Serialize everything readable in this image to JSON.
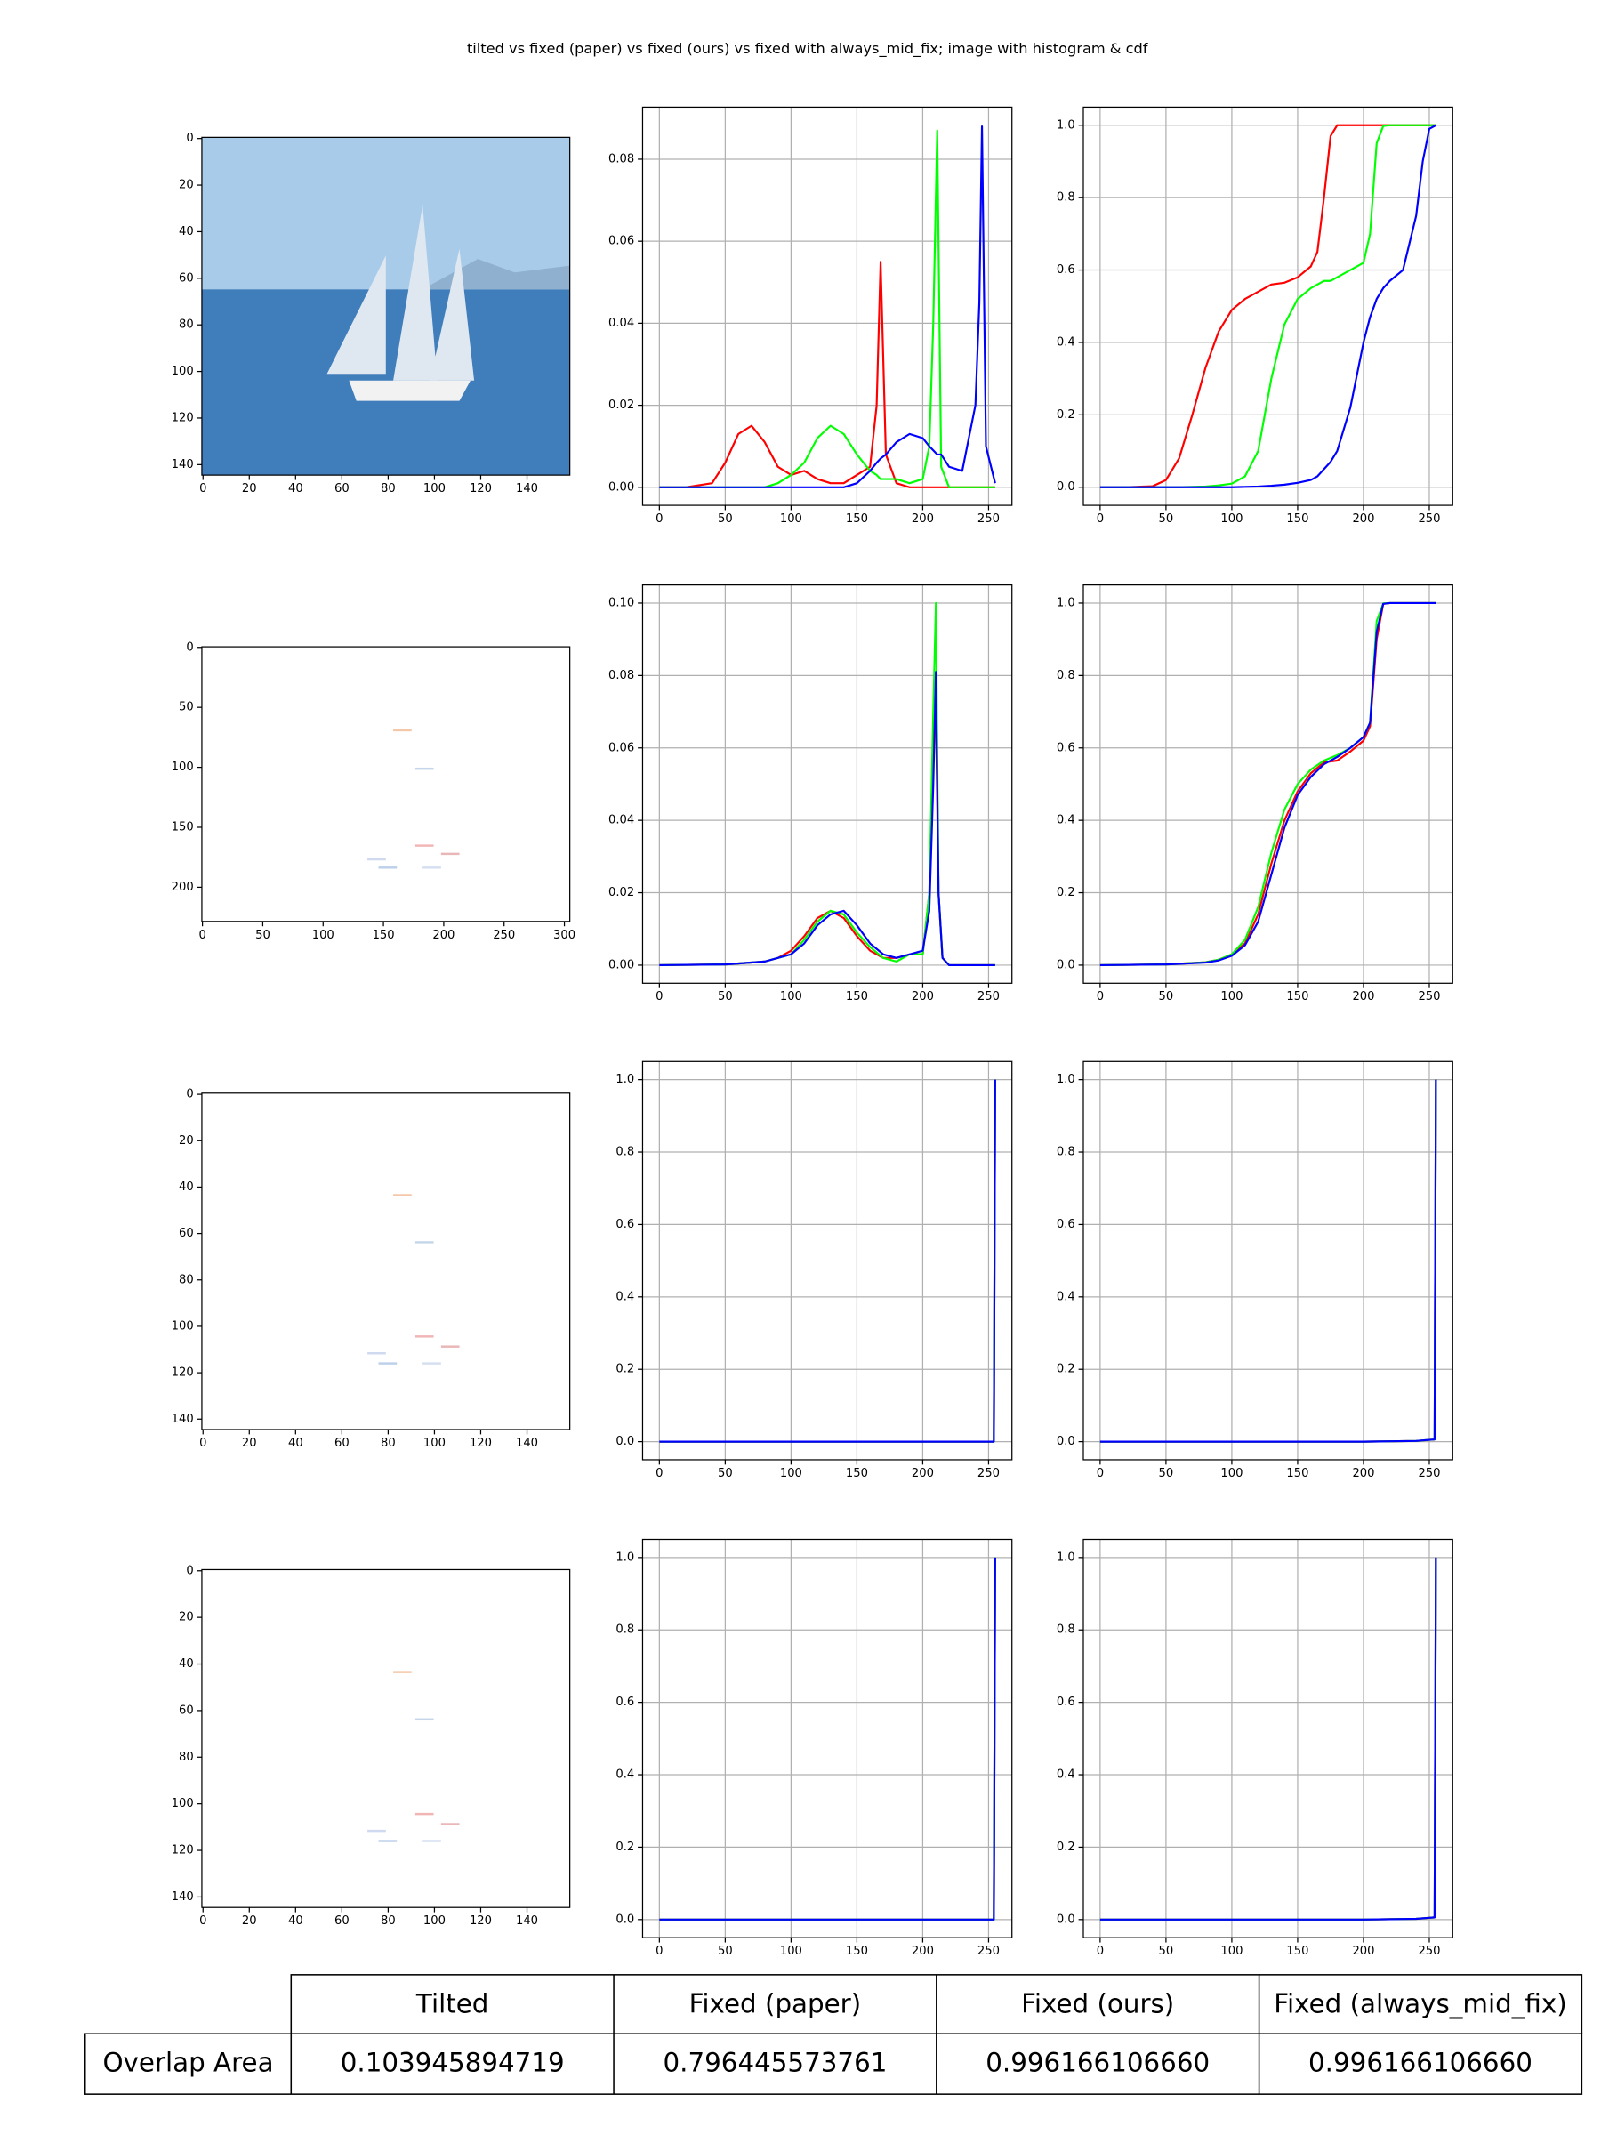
{
  "title": "tilted vs fixed (paper) vs fixed (ours) vs fixed with always_mid_fix; image with histogram & cdf",
  "chart_data": [
    {
      "type": "image",
      "xlim": [
        -0.5,
        158.5
      ],
      "ylim": [
        144.5,
        -0.5
      ],
      "xticks": [
        0,
        20,
        40,
        60,
        80,
        100,
        120,
        140
      ],
      "yticks": [
        0,
        20,
        40,
        60,
        80,
        100,
        120,
        140
      ]
    },
    {
      "type": "line",
      "grid": true,
      "xlim": [
        -12.75,
        267.75
      ],
      "ylim": [
        -0.0044,
        0.0927
      ],
      "xticks": [
        0,
        50,
        100,
        150,
        200,
        250
      ],
      "yticks": [
        {
          "value": 0,
          "label": "0.00"
        },
        0.02,
        0.04,
        0.06,
        0.08
      ],
      "x": [
        0,
        20,
        40,
        50,
        60,
        70,
        80,
        90,
        100,
        110,
        120,
        130,
        140,
        150,
        160,
        165,
        168,
        172,
        180,
        190,
        200,
        205,
        208,
        211,
        214,
        220,
        230,
        240,
        243,
        245,
        248,
        255
      ],
      "series": [
        {
          "color": "#ff0000",
          "values": [
            0,
            0,
            0.001,
            0.006,
            0.013,
            0.015,
            0.011,
            0.005,
            0.003,
            0.004,
            0.002,
            0.001,
            0.001,
            0.003,
            0.005,
            0.02,
            0.055,
            0.008,
            0.001,
            0,
            0,
            0,
            0,
            0,
            0,
            0,
            0,
            0,
            0,
            0,
            0,
            0
          ]
        },
        {
          "color": "#00ff00",
          "values": [
            0,
            0,
            0,
            0,
            0,
            0,
            0,
            0.001,
            0.003,
            0.006,
            0.012,
            0.015,
            0.013,
            0.008,
            0.004,
            0.003,
            0.002,
            0.002,
            0.002,
            0.001,
            0.002,
            0.01,
            0.04,
            0.087,
            0.005,
            0,
            0,
            0,
            0,
            0,
            0,
            0
          ]
        },
        {
          "color": "#0000ff",
          "values": [
            0,
            0,
            0,
            0,
            0,
            0,
            0,
            0,
            0,
            0,
            0,
            0,
            0,
            0.001,
            0.004,
            0.006,
            0.007,
            0.008,
            0.011,
            0.013,
            0.012,
            0.01,
            0.009,
            0.008,
            0.008,
            0.005,
            0.004,
            0.02,
            0.045,
            0.088,
            0.01,
            0.001
          ]
        }
      ]
    },
    {
      "type": "line",
      "grid": true,
      "xlim": [
        -12.75,
        267.75
      ],
      "ylim": [
        -0.05,
        1.05
      ],
      "xticks": [
        0,
        50,
        100,
        150,
        200,
        250
      ],
      "yticks": [
        {
          "value": 0,
          "label": "0.0"
        },
        0.2,
        0.4,
        0.6,
        0.8,
        {
          "value": 1,
          "label": "1.0"
        }
      ],
      "x": [
        0,
        20,
        40,
        50,
        60,
        70,
        80,
        90,
        100,
        110,
        120,
        130,
        140,
        150,
        160,
        165,
        170,
        175,
        180,
        190,
        200,
        205,
        210,
        215,
        220,
        230,
        240,
        245,
        250,
        255
      ],
      "series": [
        {
          "color": "#ff0000",
          "values": [
            0,
            0,
            0.003,
            0.02,
            0.08,
            0.2,
            0.33,
            0.43,
            0.49,
            0.52,
            0.54,
            0.56,
            0.565,
            0.58,
            0.61,
            0.65,
            0.8,
            0.97,
            1,
            1,
            1,
            1,
            1,
            1,
            1,
            1,
            1,
            1,
            1,
            1
          ]
        },
        {
          "color": "#00ff00",
          "values": [
            0,
            0,
            0,
            0,
            0,
            0.001,
            0.002,
            0.005,
            0.01,
            0.03,
            0.1,
            0.3,
            0.45,
            0.52,
            0.55,
            0.56,
            0.57,
            0.57,
            0.58,
            0.6,
            0.62,
            0.7,
            0.95,
            0.998,
            1,
            1,
            1,
            1,
            1,
            1
          ]
        },
        {
          "color": "#0000ff",
          "values": [
            0,
            0,
            0,
            0,
            0,
            0,
            0,
            0,
            0,
            0.001,
            0.002,
            0.004,
            0.007,
            0.012,
            0.02,
            0.03,
            0.05,
            0.07,
            0.1,
            0.22,
            0.4,
            0.47,
            0.52,
            0.55,
            0.57,
            0.6,
            0.75,
            0.9,
            0.99,
            1
          ]
        }
      ]
    },
    {
      "type": "image",
      "xlim": [
        -0.5,
        304.5
      ],
      "ylim": [
        228.5,
        -0.5
      ],
      "xticks": [
        0,
        50,
        100,
        150,
        200,
        250,
        300
      ],
      "yticks": [
        0,
        50,
        100,
        150,
        200
      ]
    },
    {
      "type": "line",
      "grid": true,
      "xlim": [
        -12.75,
        267.75
      ],
      "ylim": [
        -0.005,
        0.105
      ],
      "xticks": [
        0,
        50,
        100,
        150,
        200,
        250
      ],
      "yticks": [
        {
          "value": 0,
          "label": "0.00"
        },
        0.02,
        0.04,
        0.06,
        0.08,
        {
          "value": 0.1,
          "label": "0.10"
        }
      ],
      "x": [
        0,
        50,
        80,
        90,
        100,
        110,
        120,
        130,
        140,
        150,
        160,
        170,
        180,
        190,
        200,
        205,
        208,
        210,
        212,
        215,
        220,
        255
      ],
      "series": [
        {
          "color": "#ff0000",
          "values": [
            0,
            0.0002,
            0.001,
            0.002,
            0.004,
            0.008,
            0.013,
            0.015,
            0.013,
            0.008,
            0.004,
            0.002,
            0.002,
            0.003,
            0.003,
            0.02,
            0.06,
            0.07,
            0.02,
            0.002,
            0,
            0
          ]
        },
        {
          "color": "#00ff00",
          "values": [
            0,
            0.0002,
            0.001,
            0.002,
            0.003,
            0.007,
            0.012,
            0.015,
            0.014,
            0.009,
            0.005,
            0.002,
            0.001,
            0.003,
            0.003,
            0.02,
            0.07,
            0.1,
            0.02,
            0.002,
            0,
            0
          ]
        },
        {
          "color": "#0000ff",
          "values": [
            0,
            0.0002,
            0.001,
            0.002,
            0.003,
            0.006,
            0.011,
            0.014,
            0.015,
            0.011,
            0.006,
            0.003,
            0.002,
            0.003,
            0.004,
            0.015,
            0.05,
            0.081,
            0.02,
            0.002,
            0,
            0
          ]
        }
      ]
    },
    {
      "type": "line",
      "grid": true,
      "xlim": [
        -12.75,
        267.75
      ],
      "ylim": [
        -0.05,
        1.05
      ],
      "xticks": [
        0,
        50,
        100,
        150,
        200,
        250
      ],
      "yticks": [
        {
          "value": 0,
          "label": "0.0"
        },
        0.2,
        0.4,
        0.6,
        0.8,
        {
          "value": 1,
          "label": "1.0"
        }
      ],
      "x": [
        0,
        50,
        80,
        90,
        100,
        110,
        120,
        130,
        140,
        150,
        160,
        170,
        180,
        190,
        200,
        205,
        210,
        215,
        220,
        255
      ],
      "series": [
        {
          "color": "#ff0000",
          "values": [
            0,
            0.002,
            0.008,
            0.015,
            0.03,
            0.06,
            0.14,
            0.28,
            0.4,
            0.48,
            0.53,
            0.56,
            0.565,
            0.59,
            0.62,
            0.66,
            0.9,
            0.998,
            1,
            1
          ]
        },
        {
          "color": "#00ff00",
          "values": [
            0,
            0.002,
            0.008,
            0.015,
            0.03,
            0.07,
            0.16,
            0.31,
            0.43,
            0.5,
            0.54,
            0.565,
            0.58,
            0.6,
            0.63,
            0.67,
            0.95,
            0.999,
            1,
            1
          ]
        },
        {
          "color": "#0000ff",
          "values": [
            0,
            0.002,
            0.007,
            0.013,
            0.026,
            0.055,
            0.12,
            0.25,
            0.38,
            0.47,
            0.52,
            0.555,
            0.575,
            0.6,
            0.63,
            0.67,
            0.92,
            0.998,
            1,
            1
          ]
        }
      ]
    },
    {
      "type": "image",
      "xlim": [
        -0.5,
        158.5
      ],
      "ylim": [
        144.5,
        -0.5
      ],
      "xticks": [
        0,
        20,
        40,
        60,
        80,
        100,
        120,
        140
      ],
      "yticks": [
        0,
        20,
        40,
        60,
        80,
        100,
        120,
        140
      ]
    },
    {
      "type": "line",
      "grid": true,
      "xlim": [
        -12.75,
        267.75
      ],
      "ylim": [
        -0.05,
        1.05
      ],
      "xticks": [
        0,
        50,
        100,
        150,
        200,
        250
      ],
      "yticks": [
        {
          "value": 0,
          "label": "0.0"
        },
        0.2,
        0.4,
        0.6,
        0.8,
        {
          "value": 1,
          "label": "1.0"
        }
      ],
      "x": [
        0,
        253,
        254,
        255
      ],
      "series": [
        {
          "color": "#ff0000",
          "values": [
            0,
            0,
            0,
            1
          ]
        },
        {
          "color": "#00ff00",
          "values": [
            0,
            0,
            0,
            1
          ]
        },
        {
          "color": "#0000ff",
          "values": [
            0,
            0,
            0,
            1
          ]
        }
      ]
    },
    {
      "type": "line",
      "grid": true,
      "xlim": [
        -12.75,
        267.75
      ],
      "ylim": [
        -0.05,
        1.05
      ],
      "xticks": [
        0,
        50,
        100,
        150,
        200,
        250
      ],
      "yticks": [
        {
          "value": 0,
          "label": "0.0"
        },
        0.2,
        0.4,
        0.6,
        0.8,
        {
          "value": 1,
          "label": "1.0"
        }
      ],
      "x": [
        0,
        200,
        240,
        250,
        254,
        255
      ],
      "series": [
        {
          "color": "#ff0000",
          "values": [
            0,
            0,
            0.002,
            0.005,
            0.006,
            1
          ]
        },
        {
          "color": "#00ff00",
          "values": [
            0,
            0,
            0.002,
            0.005,
            0.006,
            1
          ]
        },
        {
          "color": "#0000ff",
          "values": [
            0,
            0,
            0.002,
            0.005,
            0.006,
            1
          ]
        }
      ]
    },
    {
      "type": "image",
      "xlim": [
        -0.5,
        158.5
      ],
      "ylim": [
        144.5,
        -0.5
      ],
      "xticks": [
        0,
        20,
        40,
        60,
        80,
        100,
        120,
        140
      ],
      "yticks": [
        0,
        20,
        40,
        60,
        80,
        100,
        120,
        140
      ]
    },
    {
      "type": "line",
      "grid": true,
      "xlim": [
        -12.75,
        267.75
      ],
      "ylim": [
        -0.05,
        1.05
      ],
      "xticks": [
        0,
        50,
        100,
        150,
        200,
        250
      ],
      "yticks": [
        {
          "value": 0,
          "label": "0.0"
        },
        0.2,
        0.4,
        0.6,
        0.8,
        {
          "value": 1,
          "label": "1.0"
        }
      ],
      "x": [
        0,
        253,
        254,
        255
      ],
      "series": [
        {
          "color": "#ff0000",
          "values": [
            0,
            0,
            0,
            1
          ]
        },
        {
          "color": "#00ff00",
          "values": [
            0,
            0,
            0,
            1
          ]
        },
        {
          "color": "#0000ff",
          "values": [
            0,
            0,
            0,
            1
          ]
        }
      ]
    },
    {
      "type": "line",
      "grid": true,
      "xlim": [
        -12.75,
        267.75
      ],
      "ylim": [
        -0.05,
        1.05
      ],
      "xticks": [
        0,
        50,
        100,
        150,
        200,
        250
      ],
      "yticks": [
        {
          "value": 0,
          "label": "0.0"
        },
        0.2,
        0.4,
        0.6,
        0.8,
        {
          "value": 1,
          "label": "1.0"
        }
      ],
      "x": [
        0,
        200,
        240,
        250,
        254,
        255
      ],
      "series": [
        {
          "color": "#ff0000",
          "values": [
            0,
            0,
            0.002,
            0.005,
            0.006,
            1
          ]
        },
        {
          "color": "#00ff00",
          "values": [
            0,
            0,
            0.002,
            0.005,
            0.006,
            1
          ]
        },
        {
          "color": "#0000ff",
          "values": [
            0,
            0,
            0.002,
            0.005,
            0.006,
            1
          ]
        }
      ]
    }
  ],
  "table": {
    "header": [
      "Tilted",
      "Fixed (paper)",
      "Fixed (ours)",
      "Fixed (always_mid_fix)"
    ],
    "rows": [
      [
        "Overlap Area",
        "0.103945894719",
        "0.796445573761",
        "0.996166106660",
        "0.996166106660"
      ]
    ]
  }
}
